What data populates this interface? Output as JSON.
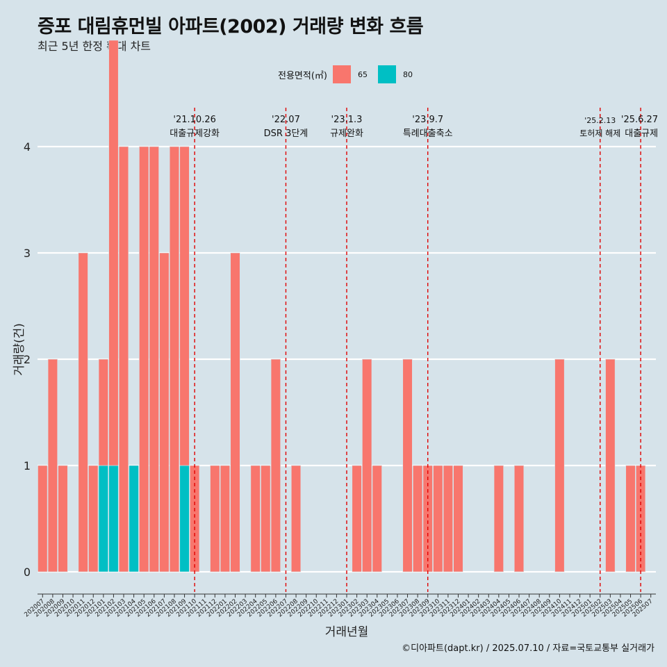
{
  "chart_data": {
    "type": "bar",
    "title": "증포 대림휴먼빌 아파트(2002) 거래량 변화 흐름",
    "subtitle": "최근 5년 한정 확대 차트",
    "xlabel": "거래년월",
    "ylabel": "거래량(건)",
    "ylim": [
      0,
      4
    ],
    "yticks": [
      0,
      1,
      2,
      3,
      4
    ],
    "legend": {
      "title": "전용면적(㎡)",
      "position": "top",
      "entries": [
        "65",
        "80"
      ]
    },
    "colors": {
      "65": "#f8766d",
      "80": "#00bfc4"
    },
    "categories": [
      "202007",
      "202008",
      "202009",
      "202010",
      "202011",
      "202012",
      "202101",
      "202102",
      "202103",
      "202104",
      "202105",
      "202106",
      "202107",
      "202108",
      "202109",
      "202110",
      "202111",
      "202112",
      "202201",
      "202202",
      "202203",
      "202204",
      "202205",
      "202206",
      "202207",
      "202208",
      "202209",
      "202210",
      "202211",
      "202212",
      "202301",
      "202302",
      "202303",
      "202304",
      "202305",
      "202306",
      "202307",
      "202308",
      "202309",
      "202310",
      "202311",
      "202312",
      "202401",
      "202402",
      "202403",
      "202404",
      "202405",
      "202406",
      "202407",
      "202408",
      "202409",
      "202410",
      "202411",
      "202412",
      "202501",
      "202502",
      "202503",
      "202504",
      "202505",
      "202506",
      "202507"
    ],
    "series": [
      {
        "name": "65",
        "values": [
          1,
          2,
          1,
          0,
          3,
          1,
          1,
          4,
          4,
          0,
          4,
          4,
          3,
          4,
          3,
          1,
          0,
          1,
          1,
          3,
          0,
          1,
          1,
          2,
          0,
          1,
          0,
          0,
          0,
          0,
          0,
          1,
          2,
          1,
          0,
          0,
          2,
          1,
          1,
          1,
          1,
          1,
          0,
          0,
          0,
          1,
          0,
          1,
          0,
          0,
          0,
          2,
          0,
          0,
          0,
          0,
          2,
          0,
          1,
          1,
          0
        ]
      },
      {
        "name": "80",
        "values": [
          0,
          0,
          0,
          0,
          0,
          0,
          1,
          1,
          0,
          1,
          0,
          0,
          0,
          0,
          1,
          0,
          0,
          0,
          0,
          0,
          0,
          0,
          0,
          0,
          0,
          0,
          0,
          0,
          0,
          0,
          0,
          0,
          0,
          0,
          0,
          0,
          0,
          0,
          0,
          0,
          0,
          0,
          0,
          0,
          0,
          0,
          0,
          0,
          0,
          0,
          0,
          0,
          0,
          0,
          0,
          0,
          0,
          0,
          0,
          0,
          0
        ]
      }
    ],
    "events": [
      {
        "date": "'21.10.26",
        "label": "대출규제강화",
        "x": "202110"
      },
      {
        "date": "'22.07",
        "label": "DSR 3단계",
        "x": "202207"
      },
      {
        "date": "'23.1.3",
        "label": "규제완화",
        "x": "202301"
      },
      {
        "date": "'23.9.7",
        "label": "특례대출축소",
        "x": "202309"
      },
      {
        "date": "'25.2.13",
        "label": "토허제 해제",
        "x": "202502"
      },
      {
        "date": "'25.6.27",
        "label": "대출규제",
        "x": "202506"
      }
    ],
    "grid": true,
    "caption": "©디아파트(dapt.kr) / 2025.07.10 / 자료=국토교통부 실거래가"
  }
}
